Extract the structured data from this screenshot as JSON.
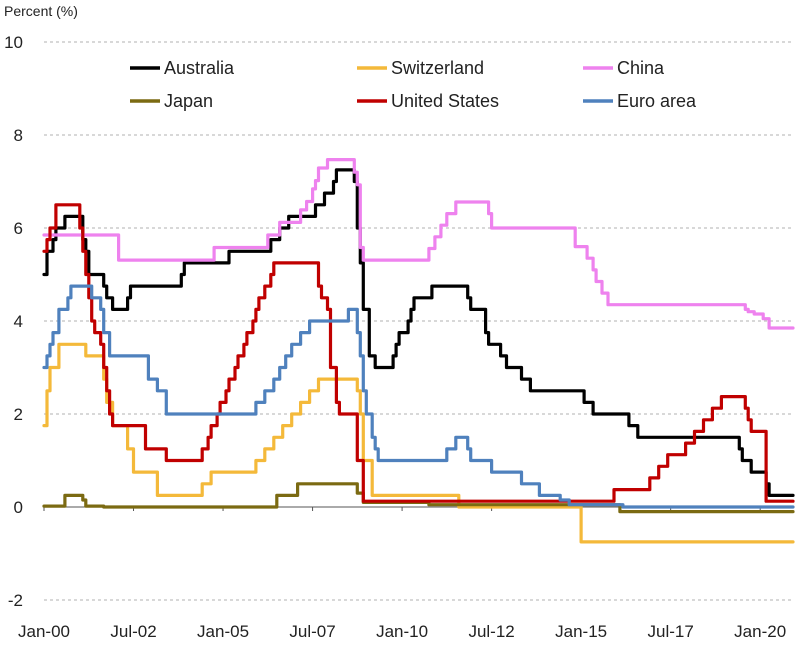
{
  "chart_data": {
    "type": "line",
    "title": "",
    "ylabel": "Percent (%)",
    "xlabel": "",
    "ylim": [
      -2,
      10
    ],
    "yticks": [
      -2,
      0,
      2,
      4,
      6,
      8,
      10
    ],
    "grid": true,
    "legend_position": "top",
    "x_range": [
      "2000-01",
      "2020-12"
    ],
    "xticks": [
      {
        "label": "Jan-00",
        "date": "2000-01"
      },
      {
        "label": "Jul-02",
        "date": "2002-07"
      },
      {
        "label": "Jan-05",
        "date": "2005-01"
      },
      {
        "label": "Jul-07",
        "date": "2007-07"
      },
      {
        "label": "Jan-10",
        "date": "2010-01"
      },
      {
        "label": "Jul-12",
        "date": "2012-07"
      },
      {
        "label": "Jan-15",
        "date": "2015-01"
      },
      {
        "label": "Jul-17",
        "date": "2017-07"
      },
      {
        "label": "Jan-20",
        "date": "2020-01"
      }
    ],
    "series": [
      {
        "name": "Australia",
        "color": "#000000",
        "points": [
          [
            "2000-01",
            5.0
          ],
          [
            "2000-02",
            5.5
          ],
          [
            "2000-04",
            5.75
          ],
          [
            "2000-05",
            6.0
          ],
          [
            "2000-08",
            6.25
          ],
          [
            "2001-02",
            5.75
          ],
          [
            "2001-03",
            5.5
          ],
          [
            "2001-04",
            5.0
          ],
          [
            "2001-09",
            4.75
          ],
          [
            "2001-10",
            4.5
          ],
          [
            "2001-12",
            4.25
          ],
          [
            "2002-05",
            4.5
          ],
          [
            "2002-06",
            4.75
          ],
          [
            "2003-11",
            5.0
          ],
          [
            "2003-12",
            5.25
          ],
          [
            "2005-03",
            5.5
          ],
          [
            "2006-05",
            5.75
          ],
          [
            "2006-08",
            6.0
          ],
          [
            "2006-11",
            6.25
          ],
          [
            "2007-08",
            6.5
          ],
          [
            "2007-11",
            6.75
          ],
          [
            "2008-02",
            7.0
          ],
          [
            "2008-03",
            7.25
          ],
          [
            "2008-09",
            7.0
          ],
          [
            "2008-10",
            6.0
          ],
          [
            "2008-11",
            5.25
          ],
          [
            "2008-12",
            4.25
          ],
          [
            "2009-02",
            3.25
          ],
          [
            "2009-04",
            3.0
          ],
          [
            "2009-10",
            3.25
          ],
          [
            "2009-11",
            3.5
          ],
          [
            "2009-12",
            3.75
          ],
          [
            "2010-03",
            4.0
          ],
          [
            "2010-04",
            4.25
          ],
          [
            "2010-05",
            4.5
          ],
          [
            "2010-11",
            4.75
          ],
          [
            "2011-11",
            4.5
          ],
          [
            "2011-12",
            4.25
          ],
          [
            "2012-05",
            3.75
          ],
          [
            "2012-06",
            3.5
          ],
          [
            "2012-10",
            3.25
          ],
          [
            "2012-12",
            3.0
          ],
          [
            "2013-05",
            2.75
          ],
          [
            "2013-08",
            2.5
          ],
          [
            "2015-02",
            2.25
          ],
          [
            "2015-05",
            2.0
          ],
          [
            "2016-05",
            1.75
          ],
          [
            "2016-08",
            1.5
          ],
          [
            "2019-06",
            1.25
          ],
          [
            "2019-07",
            1.0
          ],
          [
            "2019-10",
            0.75
          ],
          [
            "2020-03",
            0.5
          ],
          [
            "2020-04",
            0.25
          ],
          [
            "2020-12",
            0.25
          ]
        ]
      },
      {
        "name": "Switzerland",
        "color": "#f4b93a",
        "points": [
          [
            "2000-01",
            1.75
          ],
          [
            "2000-02",
            2.5
          ],
          [
            "2000-03",
            3.0
          ],
          [
            "2000-06",
            3.5
          ],
          [
            "2001-03",
            3.25
          ],
          [
            "2001-09",
            2.75
          ],
          [
            "2001-10",
            2.25
          ],
          [
            "2001-12",
            1.75
          ],
          [
            "2002-05",
            1.25
          ],
          [
            "2002-07",
            0.75
          ],
          [
            "2003-03",
            0.25
          ],
          [
            "2004-06",
            0.5
          ],
          [
            "2004-09",
            0.75
          ],
          [
            "2005-12",
            1.0
          ],
          [
            "2006-03",
            1.25
          ],
          [
            "2006-06",
            1.5
          ],
          [
            "2006-09",
            1.75
          ],
          [
            "2006-12",
            2.0
          ],
          [
            "2007-03",
            2.25
          ],
          [
            "2007-06",
            2.5
          ],
          [
            "2007-09",
            2.75
          ],
          [
            "2008-10",
            2.5
          ],
          [
            "2008-11",
            2.0
          ],
          [
            "2008-12",
            1.0
          ],
          [
            "2009-03",
            0.25
          ],
          [
            "2011-08",
            0.0
          ],
          [
            "2015-01",
            -0.75
          ],
          [
            "2020-12",
            -0.75
          ]
        ]
      },
      {
        "name": "China",
        "color": "#ee82ee",
        "points": [
          [
            "2000-01",
            5.85
          ],
          [
            "2002-02",
            5.31
          ],
          [
            "2004-10",
            5.58
          ],
          [
            "2006-04",
            5.85
          ],
          [
            "2006-08",
            6.12
          ],
          [
            "2007-03",
            6.39
          ],
          [
            "2007-05",
            6.57
          ],
          [
            "2007-07",
            6.84
          ],
          [
            "2007-08",
            7.02
          ],
          [
            "2007-09",
            7.29
          ],
          [
            "2007-12",
            7.47
          ],
          [
            "2008-09",
            7.2
          ],
          [
            "2008-10",
            6.93
          ],
          [
            "2008-11",
            5.58
          ],
          [
            "2008-12",
            5.31
          ],
          [
            "2010-10",
            5.56
          ],
          [
            "2010-12",
            5.81
          ],
          [
            "2011-02",
            6.06
          ],
          [
            "2011-04",
            6.31
          ],
          [
            "2011-07",
            6.56
          ],
          [
            "2012-06",
            6.31
          ],
          [
            "2012-07",
            6.0
          ],
          [
            "2014-11",
            5.6
          ],
          [
            "2015-03",
            5.35
          ],
          [
            "2015-05",
            5.1
          ],
          [
            "2015-06",
            4.85
          ],
          [
            "2015-08",
            4.6
          ],
          [
            "2015-10",
            4.35
          ],
          [
            "2019-08",
            4.25
          ],
          [
            "2019-09",
            4.2
          ],
          [
            "2019-11",
            4.15
          ],
          [
            "2020-02",
            4.05
          ],
          [
            "2020-04",
            3.85
          ],
          [
            "2020-12",
            3.85
          ]
        ]
      },
      {
        "name": "Japan",
        "color": "#7b6a12",
        "points": [
          [
            "2000-01",
            0.02
          ],
          [
            "2000-08",
            0.25
          ],
          [
            "2001-02",
            0.15
          ],
          [
            "2001-03",
            0.02
          ],
          [
            "2001-09",
            0.0
          ],
          [
            "2006-07",
            0.25
          ],
          [
            "2007-02",
            0.5
          ],
          [
            "2008-10",
            0.3
          ],
          [
            "2008-12",
            0.1
          ],
          [
            "2010-10",
            0.05
          ],
          [
            "2016-02",
            -0.1
          ],
          [
            "2020-12",
            -0.1
          ]
        ]
      },
      {
        "name": "United States",
        "color": "#c00000",
        "points": [
          [
            "2000-01",
            5.5
          ],
          [
            "2000-02",
            5.75
          ],
          [
            "2000-03",
            6.0
          ],
          [
            "2000-05",
            6.5
          ],
          [
            "2001-01",
            6.0
          ],
          [
            "2001-02",
            5.5
          ],
          [
            "2001-03",
            5.0
          ],
          [
            "2001-04",
            4.5
          ],
          [
            "2001-05",
            4.0
          ],
          [
            "2001-06",
            3.75
          ],
          [
            "2001-08",
            3.5
          ],
          [
            "2001-09",
            3.0
          ],
          [
            "2001-10",
            2.5
          ],
          [
            "2001-11",
            2.0
          ],
          [
            "2001-12",
            1.75
          ],
          [
            "2002-11",
            1.25
          ],
          [
            "2003-06",
            1.0
          ],
          [
            "2004-06",
            1.25
          ],
          [
            "2004-08",
            1.5
          ],
          [
            "2004-09",
            1.75
          ],
          [
            "2004-11",
            2.0
          ],
          [
            "2004-12",
            2.25
          ],
          [
            "2005-02",
            2.5
          ],
          [
            "2005-03",
            2.75
          ],
          [
            "2005-05",
            3.0
          ],
          [
            "2005-06",
            3.25
          ],
          [
            "2005-08",
            3.5
          ],
          [
            "2005-09",
            3.75
          ],
          [
            "2005-11",
            4.0
          ],
          [
            "2005-12",
            4.25
          ],
          [
            "2006-01",
            4.5
          ],
          [
            "2006-03",
            4.75
          ],
          [
            "2006-05",
            5.0
          ],
          [
            "2006-06",
            5.25
          ],
          [
            "2007-09",
            4.75
          ],
          [
            "2007-10",
            4.5
          ],
          [
            "2007-12",
            4.25
          ],
          [
            "2008-01",
            3.0
          ],
          [
            "2008-03",
            2.25
          ],
          [
            "2008-04",
            2.0
          ],
          [
            "2008-10",
            1.0
          ],
          [
            "2008-12",
            0.125
          ],
          [
            "2015-12",
            0.375
          ],
          [
            "2016-12",
            0.625
          ],
          [
            "2017-03",
            0.875
          ],
          [
            "2017-06",
            1.125
          ],
          [
            "2017-12",
            1.375
          ],
          [
            "2018-03",
            1.625
          ],
          [
            "2018-06",
            1.875
          ],
          [
            "2018-09",
            2.125
          ],
          [
            "2018-12",
            2.375
          ],
          [
            "2019-08",
            2.125
          ],
          [
            "2019-09",
            1.875
          ],
          [
            "2019-10",
            1.625
          ],
          [
            "2020-03",
            0.125
          ],
          [
            "2020-12",
            0.125
          ]
        ]
      },
      {
        "name": "Euro area",
        "color": "#4f81bd",
        "points": [
          [
            "2000-01",
            3.0
          ],
          [
            "2000-02",
            3.25
          ],
          [
            "2000-03",
            3.5
          ],
          [
            "2000-04",
            3.75
          ],
          [
            "2000-06",
            4.25
          ],
          [
            "2000-09",
            4.5
          ],
          [
            "2000-10",
            4.75
          ],
          [
            "2001-05",
            4.5
          ],
          [
            "2001-08",
            4.25
          ],
          [
            "2001-09",
            3.75
          ],
          [
            "2001-11",
            3.25
          ],
          [
            "2002-12",
            2.75
          ],
          [
            "2003-03",
            2.5
          ],
          [
            "2003-06",
            2.0
          ],
          [
            "2005-12",
            2.25
          ],
          [
            "2006-03",
            2.5
          ],
          [
            "2006-06",
            2.75
          ],
          [
            "2006-08",
            3.0
          ],
          [
            "2006-10",
            3.25
          ],
          [
            "2006-12",
            3.5
          ],
          [
            "2007-03",
            3.75
          ],
          [
            "2007-06",
            4.0
          ],
          [
            "2008-07",
            4.25
          ],
          [
            "2008-10",
            3.75
          ],
          [
            "2008-11",
            3.25
          ],
          [
            "2008-12",
            2.5
          ],
          [
            "2009-01",
            2.0
          ],
          [
            "2009-03",
            1.5
          ],
          [
            "2009-04",
            1.25
          ],
          [
            "2009-05",
            1.0
          ],
          [
            "2011-04",
            1.25
          ],
          [
            "2011-07",
            1.5
          ],
          [
            "2011-11",
            1.25
          ],
          [
            "2011-12",
            1.0
          ],
          [
            "2012-07",
            0.75
          ],
          [
            "2013-05",
            0.5
          ],
          [
            "2013-11",
            0.25
          ],
          [
            "2014-06",
            0.15
          ],
          [
            "2014-09",
            0.05
          ],
          [
            "2016-03",
            0.0
          ],
          [
            "2020-12",
            0.0
          ]
        ]
      }
    ]
  }
}
